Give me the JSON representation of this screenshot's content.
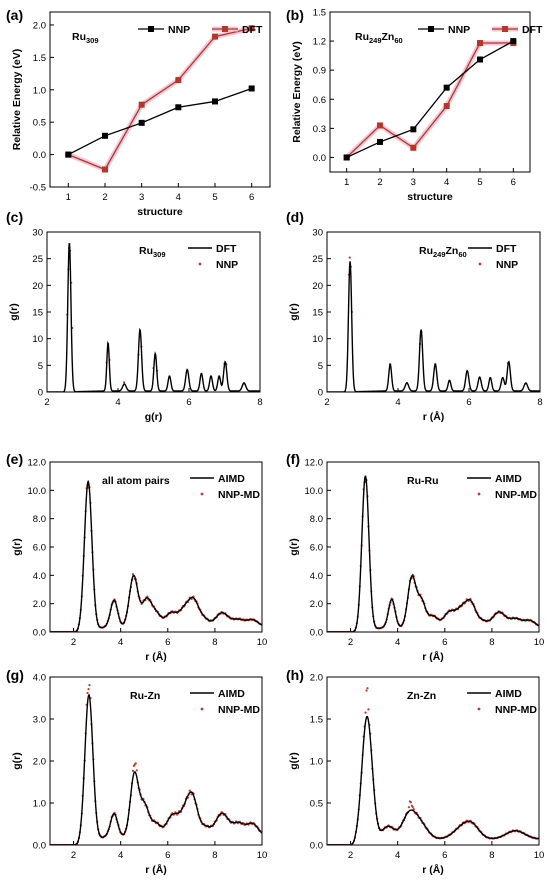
{
  "chart_data": [
    {
      "id": "a",
      "letter": "(a)",
      "type": "line",
      "annotation": {
        "base": "Ru",
        "sub": "309",
        "mid": "",
        "sub2": ""
      },
      "xlabel": "structure",
      "ylabel": "Relative Energy (eV)",
      "xlim": [
        0.5,
        6.5
      ],
      "ylim": [
        -0.5,
        2.2
      ],
      "xticks": [
        1,
        2,
        3,
        4,
        5,
        6
      ],
      "yticks": [
        -0.5,
        0.0,
        0.5,
        1.0,
        1.5,
        2.0
      ],
      "ytick_labels": [
        "-0.5",
        "0.0",
        "0.5",
        "1.0",
        "1.5",
        "2.0"
      ],
      "legend_pos": "top",
      "series": [
        {
          "name": "NNP",
          "color": "#000000",
          "x": [
            1,
            2,
            3,
            4,
            5,
            6
          ],
          "y": [
            0.0,
            0.29,
            0.49,
            0.73,
            0.82,
            1.02
          ]
        },
        {
          "name": "DFT",
          "color": "#b8352a",
          "x": [
            1,
            2,
            3,
            4,
            5,
            6
          ],
          "y": [
            0.0,
            -0.23,
            0.77,
            1.15,
            1.82,
            1.95
          ]
        }
      ]
    },
    {
      "id": "b",
      "letter": "(b)",
      "type": "line",
      "annotation": {
        "base": "Ru",
        "sub": "249",
        "mid": "Zn",
        "sub2": "60"
      },
      "xlabel": "structure",
      "ylabel": "Relative Energy (eV)",
      "xlim": [
        0.5,
        6.5
      ],
      "ylim": [
        -0.15,
        1.5
      ],
      "xticks": [
        1,
        2,
        3,
        4,
        5,
        6
      ],
      "yticks": [
        0.0,
        0.3,
        0.6,
        0.9,
        1.2,
        1.5
      ],
      "ytick_labels": [
        "0.0",
        "0.3",
        "0.6",
        "0.9",
        "1.2",
        "1.5"
      ],
      "legend_pos": "top",
      "series": [
        {
          "name": "NNP",
          "color": "#000000",
          "x": [
            1,
            2,
            3,
            4,
            5,
            6
          ],
          "y": [
            0.0,
            0.16,
            0.29,
            0.72,
            1.01,
            1.2
          ]
        },
        {
          "name": "DFT",
          "color": "#b8352a",
          "x": [
            1,
            2,
            3,
            4,
            5,
            6
          ],
          "y": [
            0.0,
            0.33,
            0.1,
            0.53,
            1.18,
            1.18
          ]
        }
      ]
    },
    {
      "id": "c",
      "letter": "(c)",
      "type": "line",
      "annotation": {
        "base": "Ru",
        "sub": "309",
        "mid": "",
        "sub2": ""
      },
      "xlabel": "g(r)",
      "ylabel": "g(r)",
      "xlim": [
        2,
        8
      ],
      "ylim": [
        0,
        30
      ],
      "xticks": [
        2,
        4,
        6,
        8
      ],
      "yticks": [
        0,
        5,
        10,
        15,
        20,
        25,
        30
      ],
      "ytick_labels": [
        "0",
        "5",
        "10",
        "15",
        "20",
        "25",
        "30"
      ],
      "legend_pos": "top-right",
      "series": [
        {
          "name": "DFT",
          "color": "#000000",
          "peaks": [
            [
              2.63,
              28.0,
              0.045
            ],
            [
              3.72,
              9.0,
              0.035
            ],
            [
              4.18,
              1.3,
              0.05
            ],
            [
              4.62,
              11.5,
              0.045
            ],
            [
              5.05,
              7.0,
              0.04
            ],
            [
              5.45,
              2.8,
              0.04
            ],
            [
              5.95,
              4.0,
              0.045
            ],
            [
              6.35,
              3.3,
              0.04
            ],
            [
              6.62,
              2.8,
              0.04
            ],
            [
              6.85,
              2.8,
              0.04
            ],
            [
              7.02,
              5.5,
              0.045
            ],
            [
              7.55,
              1.5,
              0.05
            ]
          ],
          "baseline": 0.2
        },
        {
          "name": "NNP",
          "color": "#c0392b",
          "points": [
            [
              2.57,
              14.5
            ],
            [
              2.6,
              23.0
            ],
            [
              2.62,
              27.0
            ],
            [
              2.65,
              26.5
            ],
            [
              2.68,
              20.5
            ],
            [
              2.71,
              12.0
            ],
            [
              3.68,
              5.5
            ],
            [
              3.72,
              9.0
            ],
            [
              3.76,
              6.0
            ],
            [
              4.17,
              1.8
            ],
            [
              4.58,
              7.0
            ],
            [
              4.62,
              11.5
            ],
            [
              4.66,
              8.5
            ],
            [
              5.0,
              4.5
            ],
            [
              5.05,
              7.0
            ],
            [
              5.1,
              4.0
            ],
            [
              5.45,
              2.9
            ],
            [
              5.95,
              4.0
            ],
            [
              6.35,
              3.2
            ],
            [
              6.62,
              2.8
            ],
            [
              6.85,
              2.6
            ],
            [
              7.0,
              5.3
            ],
            [
              7.05,
              5.2
            ],
            [
              7.55,
              1.6
            ]
          ]
        }
      ]
    },
    {
      "id": "d",
      "letter": "(d)",
      "type": "line",
      "annotation": {
        "base": "Ru",
        "sub": "249",
        "mid": "Zn",
        "sub2": "60"
      },
      "xlabel": "r (Å)",
      "ylabel": "g(r)",
      "xlim": [
        2,
        8
      ],
      "ylim": [
        0,
        30
      ],
      "xticks": [
        2,
        4,
        6,
        8
      ],
      "yticks": [
        0,
        5,
        10,
        15,
        20,
        25,
        30
      ],
      "ytick_labels": [
        "0",
        "5",
        "10",
        "15",
        "20",
        "25",
        "30"
      ],
      "legend_pos": "top-right",
      "series": [
        {
          "name": "DFT",
          "color": "#000000",
          "peaks": [
            [
              2.65,
              24.5,
              0.045
            ],
            [
              3.78,
              5.0,
              0.04
            ],
            [
              4.25,
              1.5,
              0.05
            ],
            [
              4.65,
              11.5,
              0.045
            ],
            [
              5.05,
              5.0,
              0.045
            ],
            [
              5.45,
              2.0,
              0.04
            ],
            [
              5.95,
              3.8,
              0.045
            ],
            [
              6.3,
              2.6,
              0.045
            ],
            [
              6.6,
              2.5,
              0.04
            ],
            [
              6.95,
              2.5,
              0.045
            ],
            [
              7.12,
              5.5,
              0.045
            ],
            [
              7.6,
              1.5,
              0.05
            ]
          ],
          "baseline": 0.2
        },
        {
          "name": "NNP",
          "color": "#c0392b",
          "points": [
            [
              2.62,
              22.0
            ],
            [
              2.64,
              25.2
            ],
            [
              2.67,
              23.5
            ],
            [
              2.7,
              15.0
            ],
            [
              3.78,
              5.2
            ],
            [
              4.25,
              1.7
            ],
            [
              4.62,
              9.0
            ],
            [
              4.66,
              11.2
            ],
            [
              5.05,
              5.2
            ],
            [
              5.45,
              2.1
            ],
            [
              5.95,
              3.8
            ],
            [
              6.3,
              2.7
            ],
            [
              6.6,
              2.6
            ],
            [
              7.1,
              5.4
            ],
            [
              7.6,
              1.6
            ]
          ]
        }
      ]
    },
    {
      "id": "e",
      "letter": "(e)",
      "type": "line",
      "annotation": {
        "base": "all atom pairs",
        "sub": "",
        "mid": "",
        "sub2": ""
      },
      "xlabel": "r (Å)",
      "ylabel": "g(r)",
      "xlim": [
        1,
        10
      ],
      "ylim": [
        0,
        12
      ],
      "xticks": [
        2,
        4,
        6,
        8,
        10
      ],
      "yticks": [
        0,
        2,
        4,
        6,
        8,
        10,
        12
      ],
      "ytick_labels": [
        "0.0",
        "2.0",
        "4.0",
        "6.0",
        "8.0",
        "10.0",
        "12.0"
      ],
      "legend_pos": "top-right",
      "series": [
        {
          "name": "AIMD",
          "color": "#000000",
          "peaks": [
            [
              2.62,
              10.5,
              0.16
            ],
            [
              3.72,
              1.9,
              0.15
            ],
            [
              4.55,
              3.6,
              0.18
            ],
            [
              5.1,
              1.9,
              0.2
            ],
            [
              5.5,
              0.9,
              0.2
            ],
            [
              6.15,
              1.0,
              0.25
            ],
            [
              6.7,
              1.1,
              0.22
            ],
            [
              7.1,
              1.8,
              0.22
            ],
            [
              7.55,
              0.5,
              0.2
            ],
            [
              8.3,
              1.0,
              0.28
            ],
            [
              9.0,
              0.5,
              0.25
            ],
            [
              9.6,
              0.5,
              0.25
            ]
          ],
          "baseline": 0.35,
          "onset": 2.2
        },
        {
          "name": "NNP-MD",
          "color": "#c0392b",
          "follow": 0
        }
      ]
    },
    {
      "id": "f",
      "letter": "(f)",
      "type": "line",
      "annotation": {
        "base": "Ru-Ru",
        "sub": "",
        "mid": "",
        "sub2": ""
      },
      "xlabel": "r (Å)",
      "ylabel": "g(r)",
      "xlim": [
        1,
        10
      ],
      "ylim": [
        0,
        12
      ],
      "xticks": [
        2,
        4,
        6,
        8,
        10
      ],
      "yticks": [
        0,
        2,
        4,
        6,
        8,
        10,
        12
      ],
      "ytick_labels": [
        "0.0",
        "2.0",
        "4.0",
        "6.0",
        "8.0",
        "10.0",
        "12.0"
      ],
      "legend_pos": "top-right",
      "series": [
        {
          "name": "AIMD",
          "color": "#000000",
          "peaks": [
            [
              2.63,
              10.9,
              0.15
            ],
            [
              3.75,
              2.0,
              0.14
            ],
            [
              4.6,
              3.5,
              0.17
            ],
            [
              5.0,
              1.9,
              0.18
            ],
            [
              5.5,
              0.8,
              0.2
            ],
            [
              6.2,
              1.1,
              0.25
            ],
            [
              6.7,
              1.1,
              0.22
            ],
            [
              7.1,
              1.7,
              0.22
            ],
            [
              7.6,
              0.4,
              0.2
            ],
            [
              8.3,
              1.1,
              0.28
            ],
            [
              9.0,
              0.6,
              0.25
            ],
            [
              9.6,
              0.5,
              0.25
            ]
          ],
          "baseline": 0.3,
          "onset": 2.2
        },
        {
          "name": "NNP-MD",
          "color": "#c0392b",
          "follow": 0
        }
      ]
    },
    {
      "id": "g",
      "letter": "(g)",
      "type": "line",
      "annotation": {
        "base": "Ru-Zn",
        "sub": "",
        "mid": "",
        "sub2": ""
      },
      "xlabel": "r (Å)",
      "ylabel": "g(r)",
      "xlim": [
        1,
        10
      ],
      "ylim": [
        0,
        4
      ],
      "xticks": [
        2,
        4,
        6,
        8,
        10
      ],
      "yticks": [
        0,
        1,
        2,
        3,
        4
      ],
      "ytick_labels": [
        "0.0",
        "1.0",
        "2.0",
        "3.0",
        "4.0"
      ],
      "legend_pos": "top-right",
      "series": [
        {
          "name": "AIMD",
          "color": "#000000",
          "peaks": [
            [
              2.65,
              3.5,
              0.17
            ],
            [
              3.72,
              0.55,
              0.15
            ],
            [
              4.58,
              1.45,
              0.17
            ],
            [
              5.0,
              0.75,
              0.2
            ],
            [
              5.5,
              0.3,
              0.2
            ],
            [
              6.2,
              0.5,
              0.25
            ],
            [
              6.7,
              0.45,
              0.22
            ],
            [
              7.05,
              0.9,
              0.22
            ],
            [
              7.6,
              0.2,
              0.2
            ],
            [
              8.3,
              0.55,
              0.28
            ],
            [
              9.0,
              0.3,
              0.25
            ],
            [
              9.6,
              0.3,
              0.25
            ]
          ],
          "baseline": 0.2,
          "onset": 2.2
        },
        {
          "name": "NNP-MD",
          "color": "#c0392b",
          "follow": 0,
          "bump": [
            [
              2.62,
              0.3
            ],
            [
              4.6,
              0.25
            ]
          ]
        }
      ]
    },
    {
      "id": "h",
      "letter": "(h)",
      "type": "line",
      "annotation": {
        "base": "Zn-Zn",
        "sub": "",
        "mid": "",
        "sub2": ""
      },
      "xlabel": "r (Å)",
      "ylabel": "g(r)",
      "xlim": [
        1,
        10
      ],
      "ylim": [
        0,
        2
      ],
      "xticks": [
        2,
        4,
        6,
        8,
        10
      ],
      "yticks": [
        0,
        0.5,
        1.0,
        1.5,
        2.0
      ],
      "ytick_labels": [
        "0.0",
        "0.5",
        "1.0",
        "1.5",
        "2.0"
      ],
      "legend_pos": "top-right",
      "series": [
        {
          "name": "AIMD",
          "color": "#000000",
          "peaks": [
            [
              2.7,
              1.5,
              0.22
            ],
            [
              3.6,
              0.15,
              0.25
            ],
            [
              4.5,
              0.3,
              0.3
            ],
            [
              5.0,
              0.15,
              0.3
            ],
            [
              6.8,
              0.15,
              0.4
            ],
            [
              7.2,
              0.1,
              0.3
            ],
            [
              9.0,
              0.1,
              0.4
            ]
          ],
          "baseline": 0.07,
          "onset": 2.2
        },
        {
          "name": "NNP-MD",
          "color": "#c0392b",
          "follow": 0,
          "bump": [
            [
              2.7,
              0.3
            ],
            [
              4.55,
              0.1
            ]
          ]
        }
      ]
    }
  ]
}
